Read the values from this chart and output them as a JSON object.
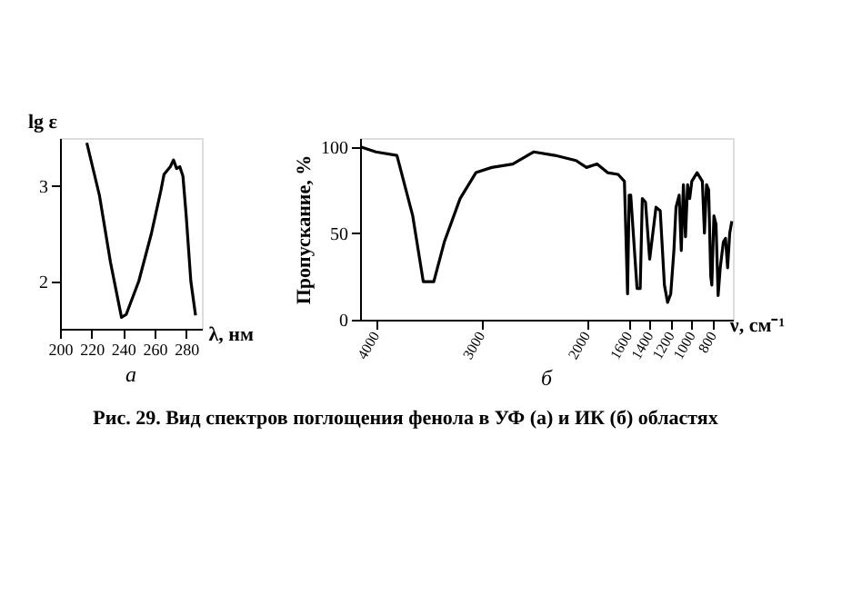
{
  "chart_data": [
    {
      "type": "line",
      "xlabel": "λ, нм",
      "ylabel": "lg ε",
      "xlim": [
        200,
        290
      ],
      "ylim": [
        1.5,
        3.5
      ],
      "xticks": [
        200,
        220,
        240,
        260,
        280
      ],
      "yticks": [
        2,
        3
      ],
      "grid": false,
      "legend": false,
      "marker": "none",
      "line_style": "solid",
      "annotations": [
        "а"
      ],
      "x": [
        217,
        225,
        232,
        239,
        242,
        250,
        258,
        264,
        266,
        270,
        272,
        274,
        276,
        278,
        280,
        283,
        286
      ],
      "series": [
        {
          "color": "#000000",
          "values": [
            3.45,
            2.9,
            2.2,
            1.62,
            1.65,
            2.0,
            2.5,
            2.95,
            3.12,
            3.2,
            3.27,
            3.18,
            3.2,
            3.1,
            2.7,
            2.0,
            1.64
          ]
        }
      ]
    },
    {
      "type": "line",
      "xlabel": "ν, см⁻¹",
      "ylabel": "Пропускание, %",
      "xlim": [
        4150,
        610
      ],
      "ylim": [
        0,
        105
      ],
      "xticks": [
        4000,
        3000,
        2000,
        1600,
        1400,
        1200,
        1000,
        800
      ],
      "yticks": [
        0,
        50,
        100
      ],
      "grid": false,
      "legend": false,
      "marker": "none",
      "line_style": "solid",
      "annotations": [
        "б",
        "Рис. 29. Вид спектров поглощения фенола в УФ (а) и ИК (б) областях"
      ],
      "x": [
        4150,
        4000,
        3800,
        3650,
        3550,
        3450,
        3350,
        3200,
        3050,
        2900,
        2700,
        2500,
        2300,
        2100,
        2000,
        1900,
        1800,
        1700,
        1640,
        1610,
        1595,
        1580,
        1520,
        1490,
        1470,
        1440,
        1400,
        1370,
        1340,
        1300,
        1260,
        1230,
        1200,
        1170,
        1150,
        1120,
        1100,
        1080,
        1060,
        1040,
        1020,
        1000,
        950,
        900,
        880,
        860,
        840,
        820,
        810,
        790,
        770,
        750,
        730,
        700,
        680,
        660,
        640,
        620
      ],
      "series": [
        {
          "color": "#000000",
          "values": [
            100,
            97,
            95,
            60,
            22,
            22,
            45,
            70,
            85,
            88,
            90,
            97,
            95,
            92,
            88,
            90,
            85,
            84,
            80,
            15,
            72,
            72,
            18,
            18,
            70,
            68,
            35,
            50,
            65,
            63,
            20,
            10,
            15,
            40,
            65,
            72,
            40,
            78,
            48,
            78,
            70,
            80,
            85,
            80,
            50,
            78,
            75,
            25,
            20,
            60,
            55,
            14,
            30,
            45,
            47,
            30,
            50,
            57
          ]
        }
      ]
    }
  ]
}
